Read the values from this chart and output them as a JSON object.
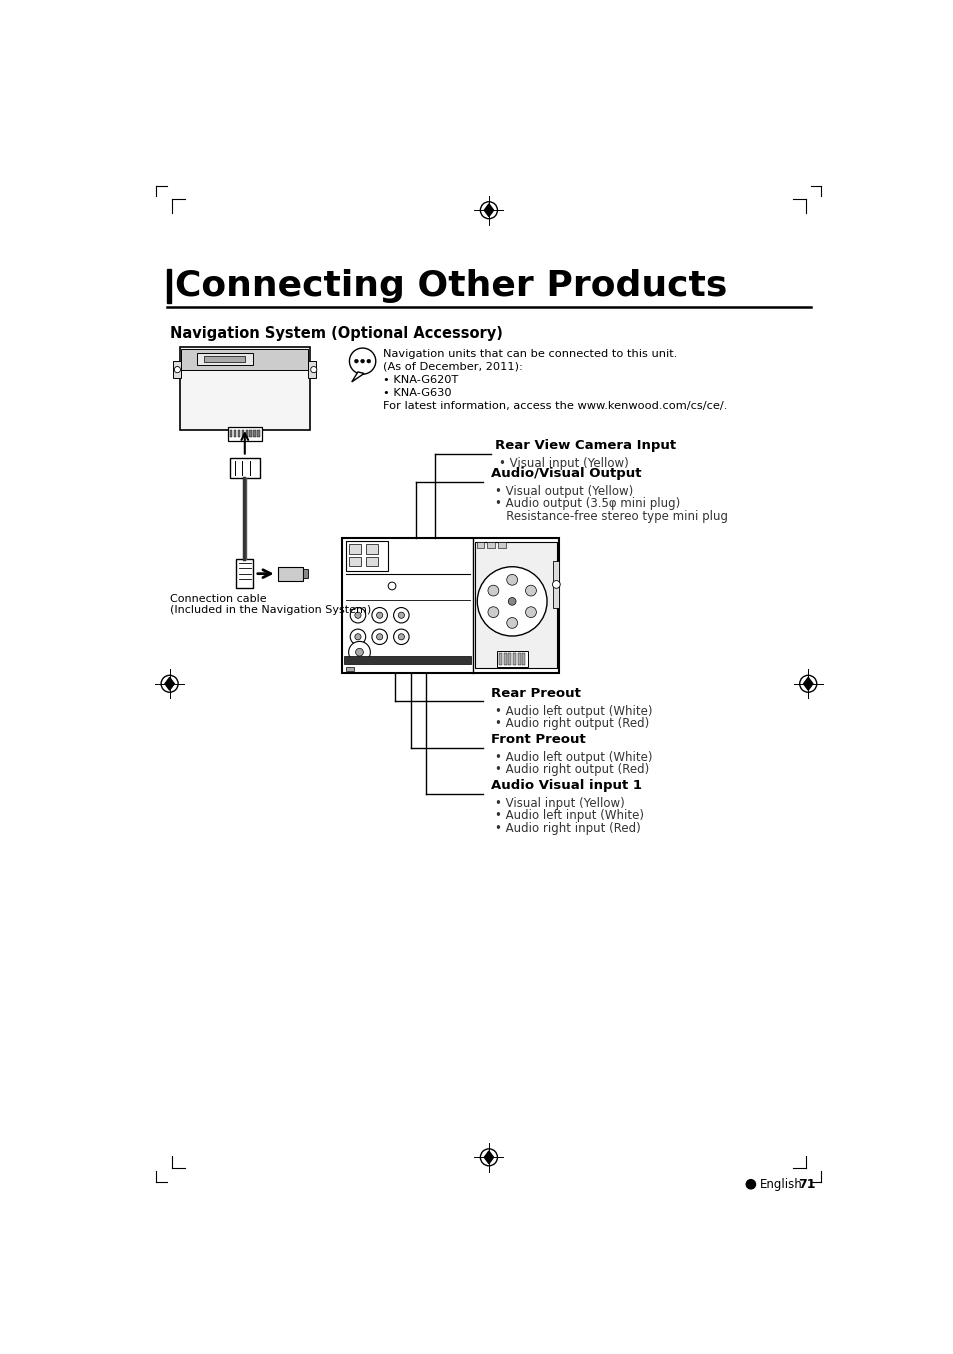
{
  "bg_color": "#ffffff",
  "page_title": "Connecting Other Products",
  "section_title": "Navigation System (Optional Accessory)",
  "nav_info_lines": [
    "Navigation units that can be connected to this unit.",
    "(As of December, 2011):",
    "• KNA-G620T",
    "• KNA-G630",
    "For latest information, access the www.kenwood.com/cs/ce/."
  ],
  "label_rv_title": "Rear View Camera Input",
  "label_rv_bullets": [
    "• Visual input (Yellow)"
  ],
  "label_av_title": "Audio/Visual Output",
  "label_av_bullets": [
    "• Visual output (Yellow)",
    "• Audio output (3.5φ mini plug)",
    "   Resistance-free stereo type mini plug"
  ],
  "label_rp_title": "Rear Preout",
  "label_rp_bullets": [
    "• Audio left output (White)",
    "• Audio right output (Red)"
  ],
  "label_fp_title": "Front Preout",
  "label_fp_bullets": [
    "• Audio left output (White)",
    "• Audio right output (Red)"
  ],
  "label_avi_title": "Audio Visual input 1",
  "label_avi_bullets": [
    "• Visual input (Yellow)",
    "• Audio left input (White)",
    "• Audio right input (Red)"
  ],
  "connection_cable_line1": "Connection cable",
  "connection_cable_line2": "(Included in the Navigation System)",
  "footer_text": "English",
  "page_number": "71"
}
